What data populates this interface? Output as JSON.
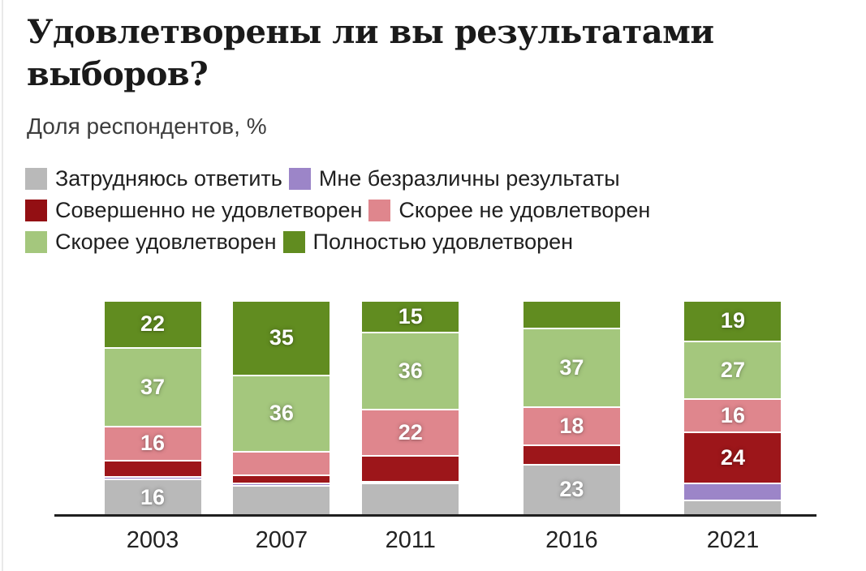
{
  "title": "Удовлетворены ли вы результатами выборов?",
  "subtitle": "Доля респондентов, %",
  "legend": [
    {
      "label": "Затрудняюсь ответить",
      "color": "#b9b9b9"
    },
    {
      "label": "Мне безразличны результаты",
      "color": "#9c85c8"
    },
    {
      "label": "Совершенно не удовлетворен",
      "color": "#930f13"
    },
    {
      "label": "Скорее не удовлетворен",
      "color": "#df868d"
    },
    {
      "label": "Скорее удовлетворен",
      "color": "#a4c77d"
    },
    {
      "label": "Полностью удовлетворен",
      "color": "#618c20"
    }
  ],
  "chart_data": {
    "type": "bar",
    "stacked": true,
    "orientation": "vertical",
    "categories": [
      "2003",
      "2007",
      "2011",
      "2016",
      "2021"
    ],
    "series": [
      {
        "name": "Затрудняюсь ответить",
        "color": "#b9b9b9",
        "values": [
          16,
          13,
          14,
          23,
          6
        ]
      },
      {
        "name": "Мне безразличны результаты",
        "color": "#9c85c8",
        "values": [
          1,
          1,
          1,
          0,
          8
        ]
      },
      {
        "name": "Совершенно не удовлетворен",
        "color": "#9d161a",
        "values": [
          8,
          4,
          12,
          9,
          24
        ]
      },
      {
        "name": "Скорее не удовлетворен",
        "color": "#df868d",
        "values": [
          16,
          11,
          22,
          18,
          16
        ]
      },
      {
        "name": "Скорее удовлетворен",
        "color": "#a4c77d",
        "values": [
          37,
          36,
          36,
          37,
          27
        ]
      },
      {
        "name": "Полностью удовлетворен",
        "color": "#618c20",
        "values": [
          22,
          35,
          15,
          13,
          19
        ]
      }
    ],
    "visible_value_labels": {
      "2003": [
        16,
        16,
        37,
        22
      ],
      "2007": [
        35,
        36
      ],
      "2011": [
        22,
        36,
        15
      ],
      "2016": [
        23,
        18,
        37
      ],
      "2021": [
        24,
        16,
        27,
        19
      ]
    },
    "label_min_value": 15,
    "title": "Удовлетворены ли вы результатами выборов?",
    "ylabel": "Доля респондентов, %",
    "ylim": [
      0,
      100
    ],
    "grid": false,
    "legend_position": "top",
    "x_axis_time_proportional": true
  }
}
